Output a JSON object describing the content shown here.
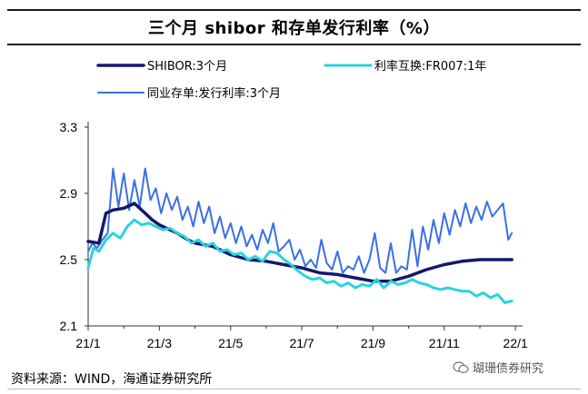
{
  "title": "三个月 shibor 和存单发行利率（%）",
  "source": "资料来源：WIND，海通证券研究所",
  "watermark": "瑚珊债券研究",
  "chart_data": {
    "type": "line",
    "title": "三个月 shibor 和存单发行利率（%）",
    "xlabel": "",
    "ylabel": "",
    "xlim": [
      0,
      12.2
    ],
    "ylim": [
      2.1,
      3.3
    ],
    "yticks": [
      2.1,
      2.5,
      2.9,
      3.3
    ],
    "ytick_labels": [
      "2.1",
      "2.5",
      "2.9",
      "3.3"
    ],
    "xticks": [
      0,
      2,
      4,
      6,
      8,
      10,
      12
    ],
    "xtick_labels": [
      "21/1",
      "21/3",
      "21/5",
      "21/7",
      "21/9",
      "21/11",
      "22/1"
    ],
    "legend_position": "top",
    "series": [
      {
        "name": "SHIBOR:3个月",
        "color": "#15186b",
        "width": 3.5,
        "x": [
          0,
          0.3,
          0.5,
          0.7,
          1.0,
          1.3,
          1.6,
          1.8,
          2.0,
          2.2,
          2.5,
          2.8,
          3.0,
          3.5,
          4.0,
          4.5,
          5.0,
          5.5,
          6.0,
          6.5,
          7.0,
          7.5,
          8.0,
          8.5,
          9.0,
          9.5,
          10.0,
          10.5,
          11.0,
          11.5,
          11.9
        ],
        "y": [
          2.61,
          2.6,
          2.78,
          2.8,
          2.81,
          2.84,
          2.78,
          2.74,
          2.71,
          2.69,
          2.66,
          2.62,
          2.6,
          2.58,
          2.53,
          2.5,
          2.49,
          2.47,
          2.45,
          2.42,
          2.41,
          2.39,
          2.37,
          2.37,
          2.4,
          2.44,
          2.47,
          2.49,
          2.5,
          2.5,
          2.5
        ]
      },
      {
        "name": "利率互换:FR007:1年",
        "color": "#2ad3dc",
        "width": 3,
        "x": [
          0,
          0.15,
          0.3,
          0.5,
          0.7,
          0.9,
          1.1,
          1.3,
          1.5,
          1.7,
          1.9,
          2.1,
          2.3,
          2.5,
          2.7,
          2.9,
          3.1,
          3.3,
          3.5,
          3.7,
          3.9,
          4.1,
          4.3,
          4.5,
          4.7,
          4.9,
          5.1,
          5.3,
          5.5,
          5.7,
          5.9,
          6.1,
          6.3,
          6.5,
          6.7,
          6.9,
          7.1,
          7.3,
          7.5,
          7.7,
          7.9,
          8.1,
          8.3,
          8.5,
          8.7,
          8.9,
          9.1,
          9.3,
          9.5,
          9.7,
          9.9,
          10.1,
          10.3,
          10.5,
          10.7,
          10.9,
          11.1,
          11.3,
          11.5,
          11.7,
          11.9
        ],
        "y": [
          2.45,
          2.57,
          2.55,
          2.62,
          2.66,
          2.63,
          2.7,
          2.74,
          2.71,
          2.72,
          2.7,
          2.68,
          2.69,
          2.66,
          2.64,
          2.6,
          2.62,
          2.58,
          2.6,
          2.55,
          2.56,
          2.53,
          2.54,
          2.5,
          2.52,
          2.49,
          2.55,
          2.54,
          2.5,
          2.47,
          2.43,
          2.4,
          2.38,
          2.39,
          2.36,
          2.37,
          2.34,
          2.36,
          2.33,
          2.35,
          2.34,
          2.38,
          2.33,
          2.37,
          2.35,
          2.36,
          2.38,
          2.36,
          2.35,
          2.33,
          2.32,
          2.33,
          2.32,
          2.31,
          2.31,
          2.28,
          2.3,
          2.27,
          2.29,
          2.24,
          2.25
        ]
      },
      {
        "name": "同业存单:发行利率:3个月",
        "color": "#3b6fe8",
        "width": 2,
        "x": [
          0,
          0.12,
          0.25,
          0.4,
          0.55,
          0.7,
          0.85,
          1.0,
          1.15,
          1.3,
          1.45,
          1.6,
          1.75,
          1.9,
          2.05,
          2.2,
          2.35,
          2.5,
          2.65,
          2.8,
          2.95,
          3.1,
          3.25,
          3.4,
          3.55,
          3.7,
          3.85,
          4.0,
          4.15,
          4.3,
          4.45,
          4.6,
          4.75,
          4.9,
          5.05,
          5.2,
          5.35,
          5.5,
          5.65,
          5.8,
          5.95,
          6.1,
          6.25,
          6.4,
          6.55,
          6.7,
          6.85,
          7.0,
          7.15,
          7.3,
          7.45,
          7.6,
          7.75,
          7.9,
          8.05,
          8.2,
          8.35,
          8.5,
          8.65,
          8.8,
          8.95,
          9.1,
          9.25,
          9.4,
          9.55,
          9.7,
          9.85,
          10.0,
          10.15,
          10.3,
          10.45,
          10.6,
          10.75,
          10.9,
          11.05,
          11.2,
          11.35,
          11.5,
          11.65,
          11.8,
          11.9
        ],
        "y": [
          2.55,
          2.6,
          2.57,
          2.62,
          2.66,
          3.05,
          2.82,
          3.02,
          2.8,
          2.98,
          2.82,
          3.05,
          2.86,
          2.93,
          2.78,
          2.9,
          2.8,
          2.88,
          2.74,
          2.82,
          2.7,
          2.85,
          2.72,
          2.82,
          2.66,
          2.76,
          2.63,
          2.72,
          2.6,
          2.7,
          2.58,
          2.65,
          2.56,
          2.68,
          2.6,
          2.72,
          2.55,
          2.58,
          2.62,
          2.5,
          2.56,
          2.46,
          2.5,
          2.45,
          2.62,
          2.48,
          2.44,
          2.55,
          2.42,
          2.46,
          2.44,
          2.52,
          2.42,
          2.5,
          2.66,
          2.45,
          2.42,
          2.6,
          2.42,
          2.46,
          2.44,
          2.68,
          2.46,
          2.7,
          2.56,
          2.74,
          2.6,
          2.78,
          2.65,
          2.8,
          2.7,
          2.84,
          2.72,
          2.82,
          2.74,
          2.85,
          2.76,
          2.8,
          2.84,
          2.62,
          2.66
        ]
      }
    ]
  }
}
